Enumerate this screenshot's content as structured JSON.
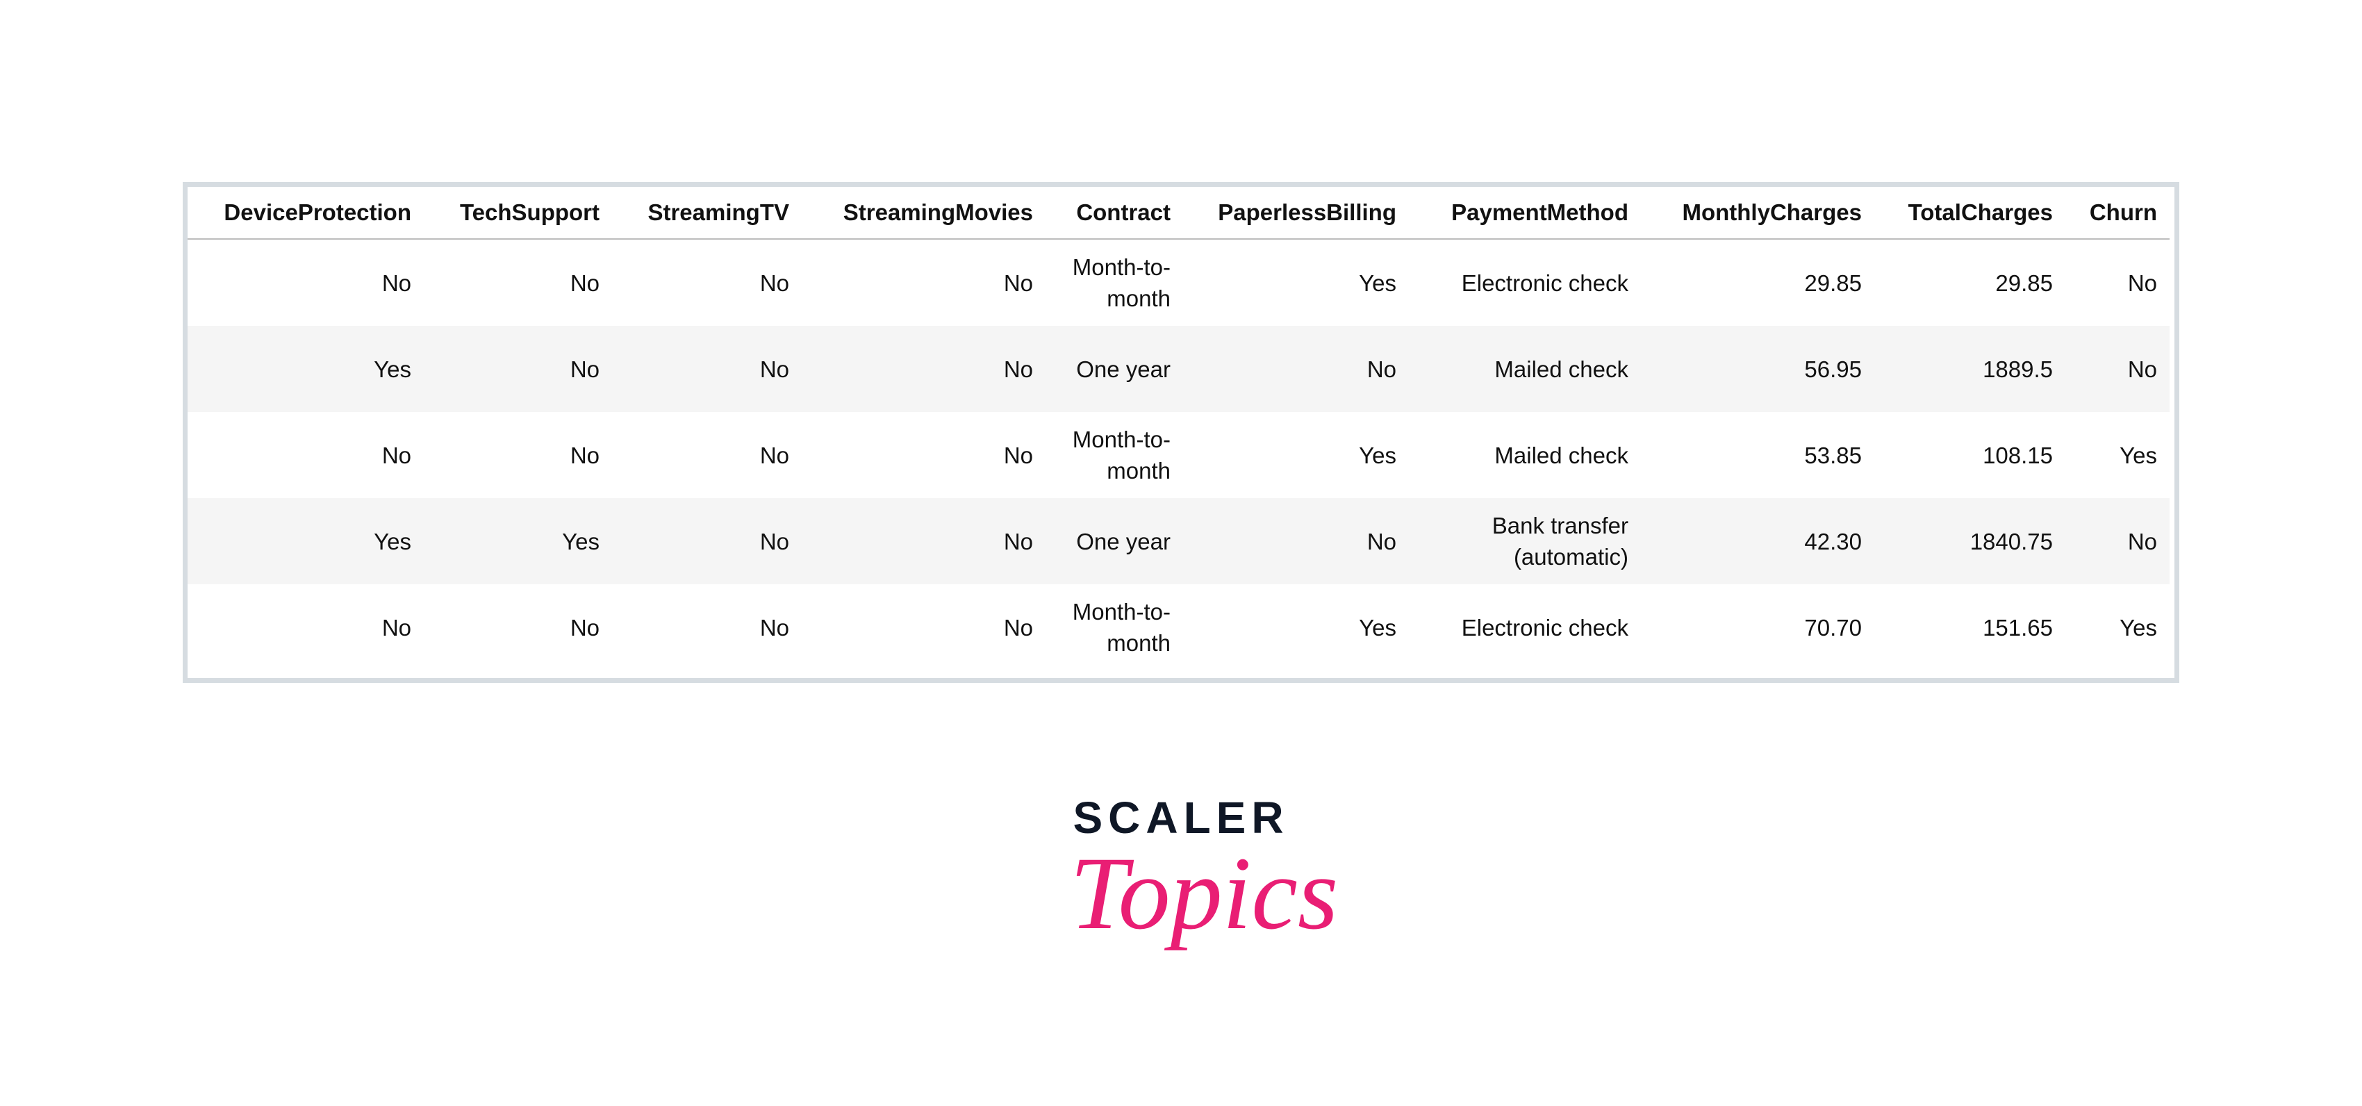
{
  "table": {
    "columns": [
      "DeviceProtection",
      "TechSupport",
      "StreamingTV",
      "StreamingMovies",
      "Contract",
      "PaperlessBilling",
      "PaymentMethod",
      "MonthlyCharges",
      "TotalCharges",
      "Churn"
    ],
    "rows": [
      [
        "No",
        "No",
        "No",
        "No",
        "Month-to-month",
        "Yes",
        "Electronic check",
        "29.85",
        "29.85",
        "No"
      ],
      [
        "Yes",
        "No",
        "No",
        "No",
        "One year",
        "No",
        "Mailed check",
        "56.95",
        "1889.5",
        "No"
      ],
      [
        "No",
        "No",
        "No",
        "No",
        "Month-to-month",
        "Yes",
        "Mailed check",
        "53.85",
        "108.15",
        "Yes"
      ],
      [
        "Yes",
        "Yes",
        "No",
        "No",
        "One year",
        "No",
        "Bank transfer (automatic)",
        "42.30",
        "1840.75",
        "No"
      ],
      [
        "No",
        "No",
        "No",
        "No",
        "Month-to-month",
        "Yes",
        "Electronic check",
        "70.70",
        "151.65",
        "Yes"
      ]
    ]
  },
  "logo": {
    "line1": "SCALER",
    "line2": "Topics",
    "brand_dark": "#0f1726",
    "brand_pink": "#e91e74"
  },
  "colors": {
    "border": "#d6dce1",
    "row_alt": "#f5f5f5"
  }
}
